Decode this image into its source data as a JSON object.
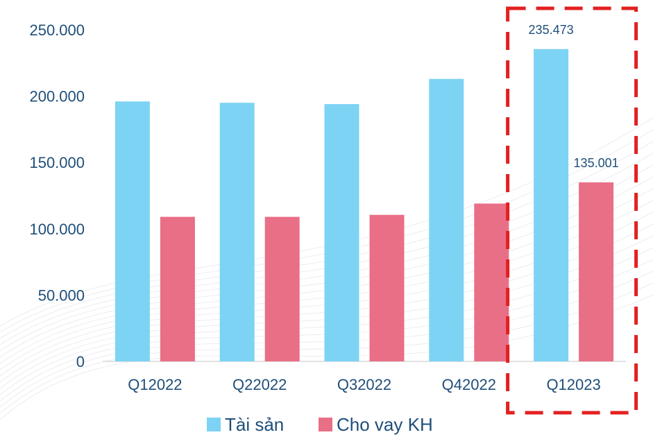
{
  "chart_data": {
    "type": "bar",
    "title": "",
    "xlabel": "",
    "ylabel": "",
    "categories": [
      "Q12022",
      "Q22022",
      "Q32022",
      "Q42022",
      "Q12023"
    ],
    "series": [
      {
        "name": "Tài sản",
        "values": [
          196000,
          195000,
          194000,
          213000,
          235473
        ],
        "color": "#7dd3f4"
      },
      {
        "name": "Cho vay KH",
        "values": [
          109000,
          109000,
          110500,
          119000,
          135001
        ],
        "color": "#e96f86"
      }
    ],
    "data_labels": [
      {
        "series": 0,
        "category": 4,
        "text": "235.473"
      },
      {
        "series": 1,
        "category": 4,
        "text": "135.001"
      }
    ],
    "ylim": [
      0,
      250000
    ],
    "y_ticks": [
      0,
      50000,
      100000,
      150000,
      200000,
      250000
    ],
    "y_tick_labels": [
      "0",
      "50.000",
      "100.000",
      "150.000",
      "200.000",
      "250.000"
    ],
    "grid": false,
    "legend_position": "bottom",
    "highlight": {
      "category": 4,
      "style": "dashed-box",
      "color": "#e32020"
    },
    "colors": {
      "axis_text": "#1f4e79",
      "axis_line": "#d9d9d9",
      "background_lines": "#c7ccdd"
    }
  }
}
